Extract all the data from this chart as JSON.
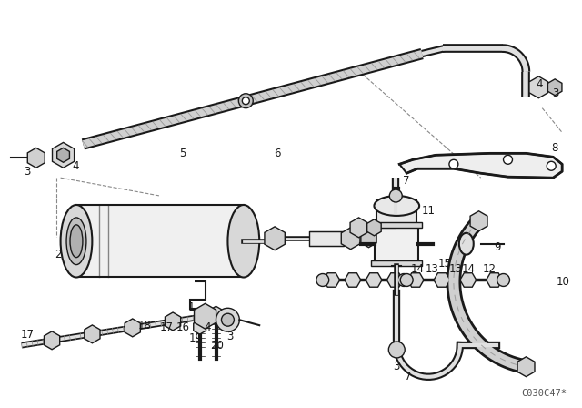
{
  "background_color": "#ffffff",
  "line_color": "#1a1a1a",
  "fig_width": 6.4,
  "fig_height": 4.48,
  "dpi": 100,
  "watermark": "C030C47*",
  "watermark_fontsize": 7.5
}
